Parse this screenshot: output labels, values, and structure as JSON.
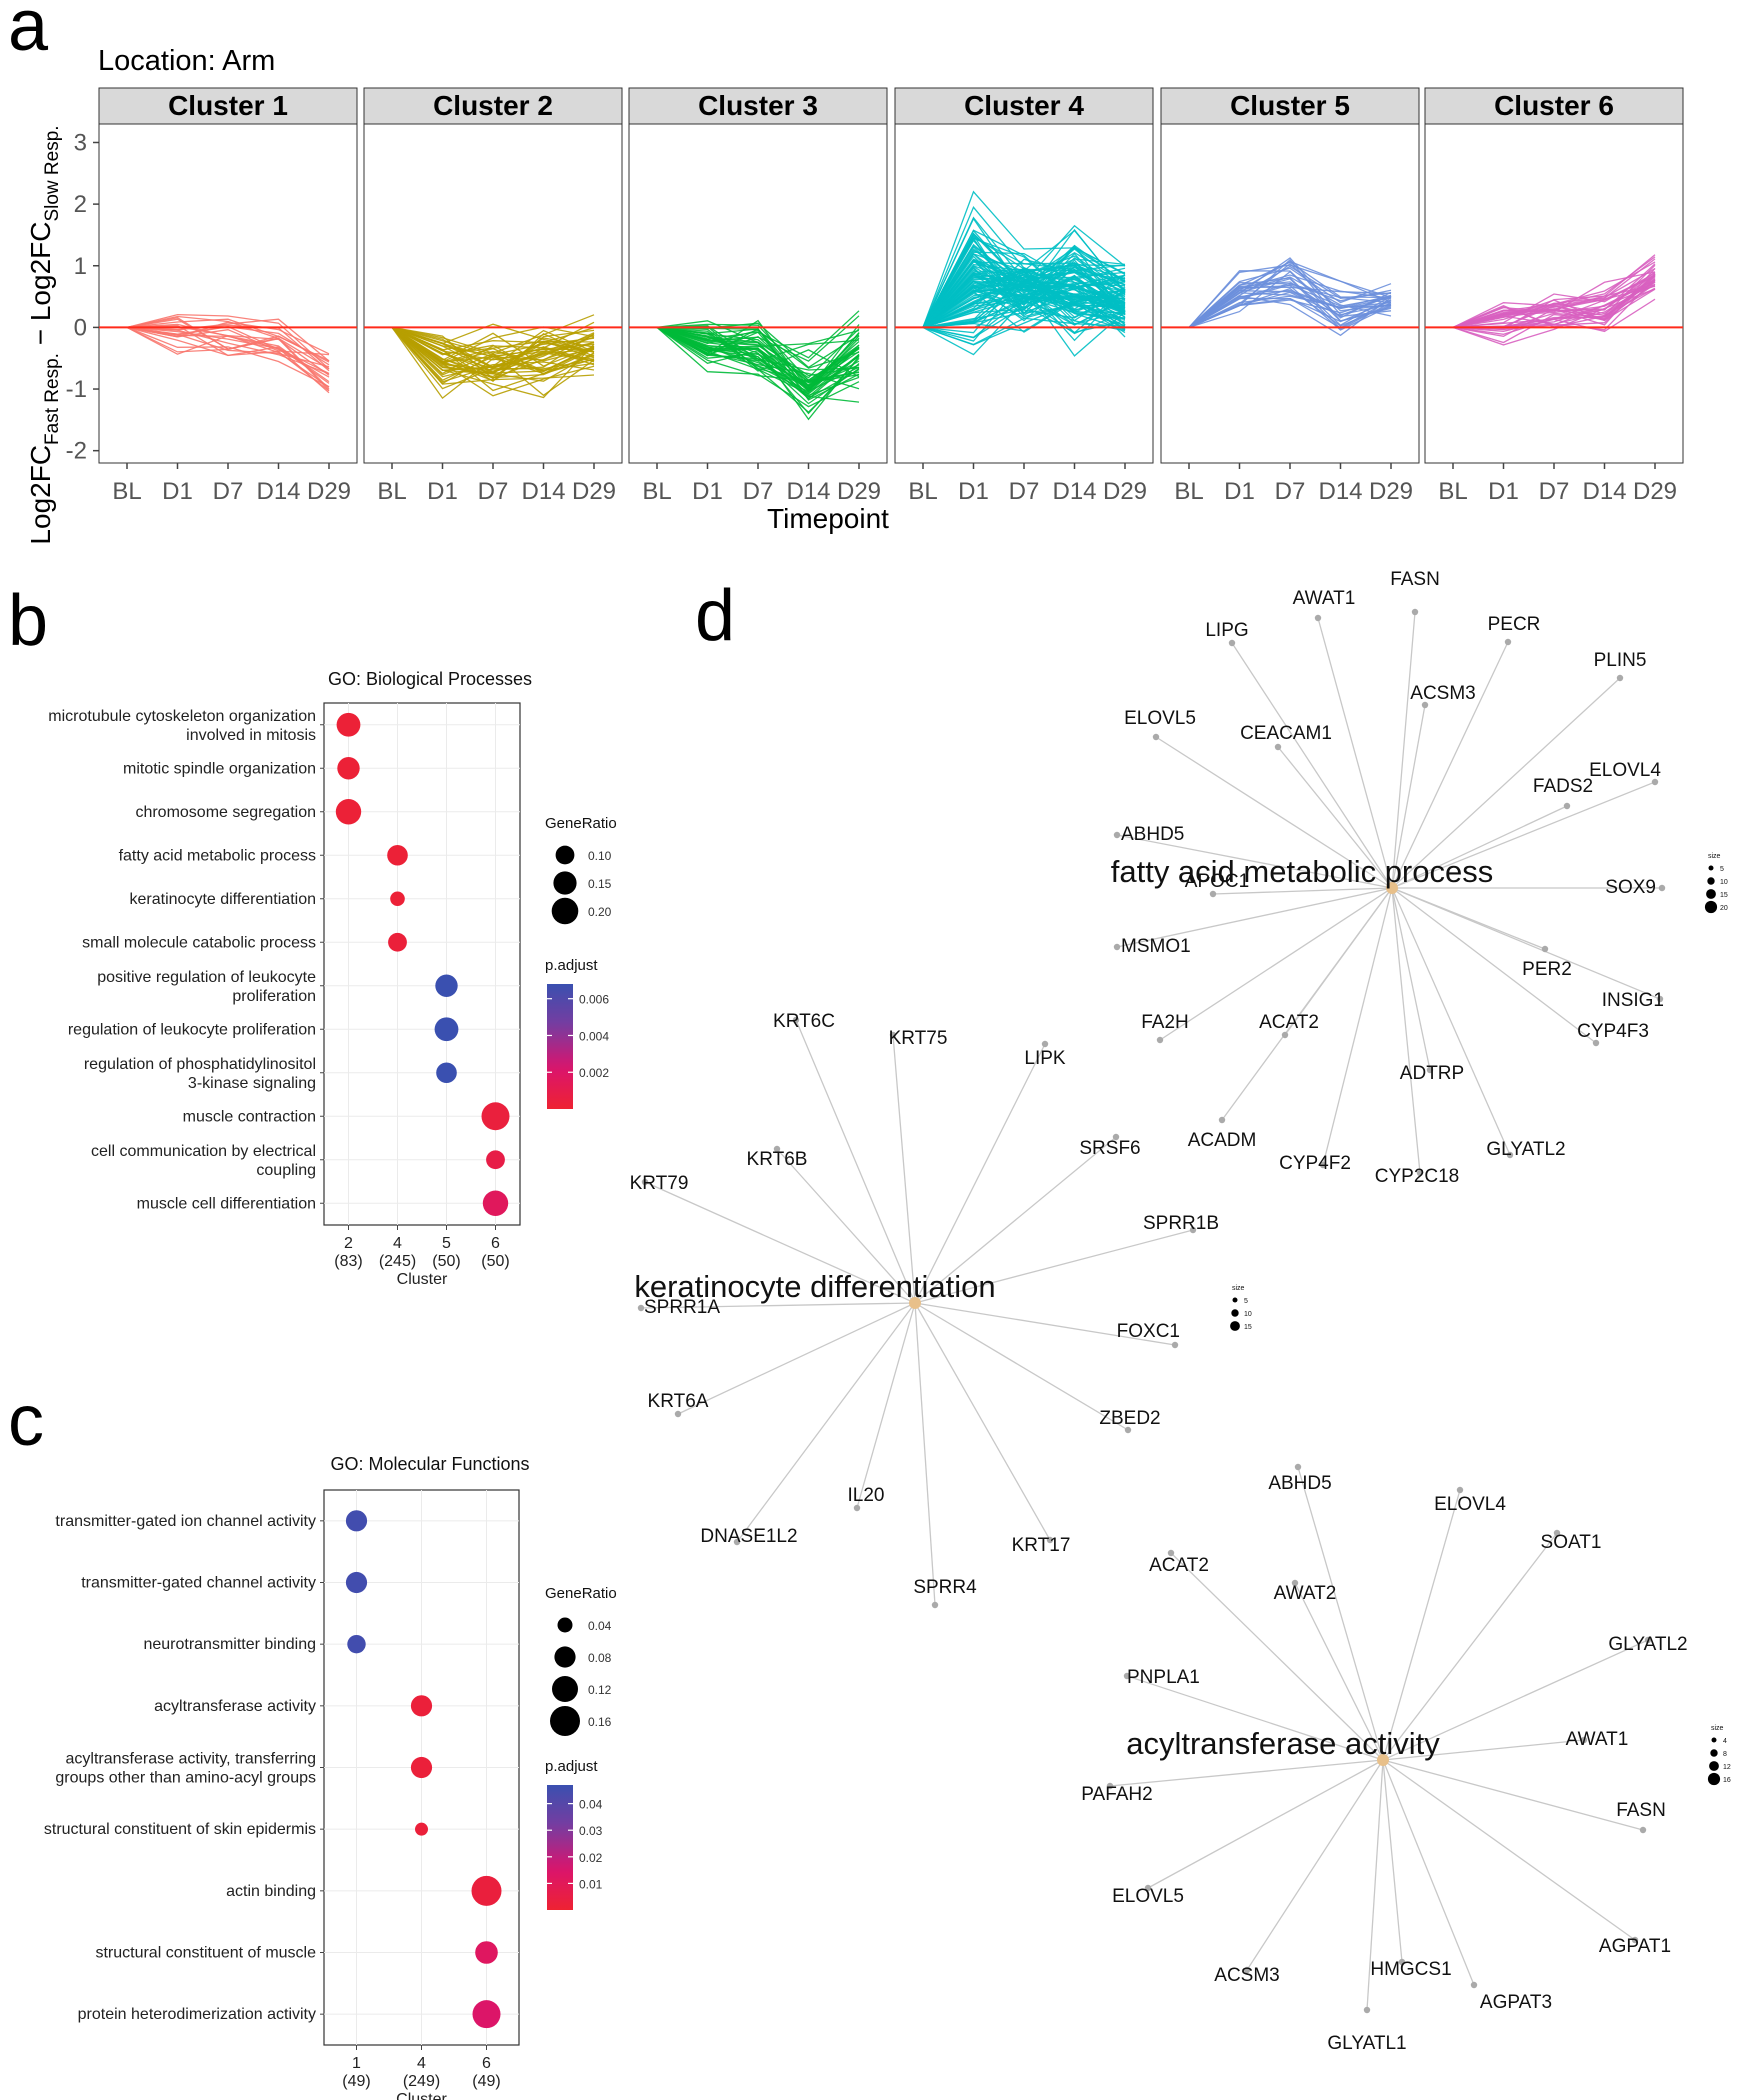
{
  "panel_labels": {
    "a": "a",
    "b": "b",
    "c": "c",
    "d": "d"
  },
  "panel_a": {
    "location": "Location: Arm",
    "y_axis_label": "Log2FC",
    "y_sub_fast": "Fast Resp.",
    "y_sub_slow": "Slow Resp.",
    "y_minus": " − Log2FC",
    "x_axis_label": "Timepoint",
    "yticks": [
      "-2",
      "-1",
      "0",
      "1",
      "2",
      "3"
    ],
    "timepoints": [
      "BL",
      "D1",
      "D7",
      "D14",
      "D29"
    ],
    "reference_line_color": "#ff2a1a"
  },
  "panel_b": {
    "title": "GO: Biological Processes",
    "x_title": "Cluster",
    "legend_size_title": "GeneRatio",
    "legend_color_title": "p.adjust"
  },
  "panel_c": {
    "title": "GO: Molecular Functions",
    "x_title": "Cluster",
    "legend_size_title": "GeneRatio",
    "legend_color_title": "p.adjust"
  },
  "panel_d": {
    "hub_color": "#e8c08a",
    "edge_color": "#c8c8c8",
    "size_legend_title": "size"
  },
  "chart_data": [
    {
      "type": "line",
      "id": "a",
      "title": "Location: Arm",
      "xlabel": "Timepoint",
      "ylabel": "Log2FC Fast Resp. − Log2FC Slow Resp.",
      "x": [
        "BL",
        "D1",
        "D7",
        "D14",
        "D29"
      ],
      "ylim": [
        -2.2,
        3.3
      ],
      "facets": [
        {
          "name": "Cluster 1",
          "color": "#f8766d",
          "n_lines": 22,
          "mean": [
            0,
            -0.1,
            -0.15,
            -0.2,
            -0.8
          ],
          "spread": [
            0,
            0.25,
            0.3,
            0.3,
            0.25
          ]
        },
        {
          "name": "Cluster 2",
          "color": "#b79f00",
          "n_lines": 45,
          "mean": [
            0,
            -0.6,
            -0.55,
            -0.45,
            -0.3
          ],
          "spread": [
            0,
            0.35,
            0.35,
            0.4,
            0.3
          ]
        },
        {
          "name": "Cluster 3",
          "color": "#00ba38",
          "n_lines": 45,
          "mean": [
            0,
            -0.3,
            -0.4,
            -0.9,
            -0.4
          ],
          "spread": [
            0,
            0.35,
            0.35,
            0.4,
            0.45
          ]
        },
        {
          "name": "Cluster 4",
          "color": "#00bfc4",
          "n_lines": 110,
          "mean": [
            0,
            0.8,
            0.6,
            0.6,
            0.4
          ],
          "spread": [
            0,
            0.8,
            0.5,
            0.6,
            0.45
          ]
        },
        {
          "name": "Cluster 5",
          "color": "#6c8fdb",
          "n_lines": 30,
          "mean": [
            0,
            0.55,
            0.75,
            0.3,
            0.45
          ],
          "spread": [
            0,
            0.3,
            0.35,
            0.35,
            0.2
          ]
        },
        {
          "name": "Cluster 6",
          "color": "#d860c0",
          "n_lines": 35,
          "mean": [
            0,
            0.15,
            0.25,
            0.3,
            0.85
          ],
          "spread": [
            0,
            0.25,
            0.25,
            0.25,
            0.25
          ]
        }
      ]
    },
    {
      "type": "scatter",
      "id": "b",
      "title": "GO: Biological Processes",
      "xlabel": "Cluster",
      "x_categories": [
        "2",
        "4",
        "5",
        "6"
      ],
      "x_counts": [
        "(83)",
        "(245)",
        "(50)",
        "(50)"
      ],
      "terms": [
        {
          "label": "microtubule cytoskeleton organization\ninvolved in mitosis",
          "cluster": "2",
          "gene_ratio": 0.16,
          "p_adjust": 0.0002,
          "highlight": false
        },
        {
          "label": "mitotic spindle organization",
          "cluster": "2",
          "gene_ratio": 0.14,
          "p_adjust": 0.0002,
          "highlight": false
        },
        {
          "label": "chromosome segregation",
          "cluster": "2",
          "gene_ratio": 0.18,
          "p_adjust": 0.0002,
          "highlight": false
        },
        {
          "label": "fatty acid metabolic process",
          "cluster": "4",
          "gene_ratio": 0.12,
          "p_adjust": 0.0002,
          "highlight": true
        },
        {
          "label": "keratinocyte differentiation",
          "cluster": "4",
          "gene_ratio": 0.06,
          "p_adjust": 0.0002,
          "highlight": true
        },
        {
          "label": "small molecule catabolic process",
          "cluster": "4",
          "gene_ratio": 0.1,
          "p_adjust": 0.0003,
          "highlight": false
        },
        {
          "label": "positive regulation of leukocyte\nproliferation",
          "cluster": "5",
          "gene_ratio": 0.14,
          "p_adjust": 0.0068,
          "highlight": false
        },
        {
          "label": "regulation of leukocyte proliferation",
          "cluster": "5",
          "gene_ratio": 0.16,
          "p_adjust": 0.0068,
          "highlight": false
        },
        {
          "label": "regulation of phosphatidylinositol\n3-kinase signaling",
          "cluster": "5",
          "gene_ratio": 0.12,
          "p_adjust": 0.0068,
          "highlight": false
        },
        {
          "label": "muscle contraction",
          "cluster": "6",
          "gene_ratio": 0.22,
          "p_adjust": 0.0004,
          "highlight": false
        },
        {
          "label": "cell communication by electrical\ncoupling",
          "cluster": "6",
          "gene_ratio": 0.1,
          "p_adjust": 0.0008,
          "highlight": false
        },
        {
          "label": "muscle cell differentiation",
          "cluster": "6",
          "gene_ratio": 0.18,
          "p_adjust": 0.0016,
          "highlight": false
        }
      ],
      "size_legend": [
        0.1,
        0.15,
        0.2
      ],
      "size_legend_labels": [
        "0.10",
        "0.15",
        "0.20"
      ],
      "color_legend_range": [
        0,
        0.0068
      ],
      "color_legend_ticks": [
        0.002,
        0.004,
        0.006
      ],
      "color_legend_labels": [
        "0.002",
        "0.004",
        "0.006"
      ],
      "highlight_color": "#ee2222"
    },
    {
      "type": "scatter",
      "id": "c",
      "title": "GO: Molecular Functions",
      "xlabel": "Cluster",
      "x_categories": [
        "1",
        "4",
        "6"
      ],
      "x_counts": [
        "(49)",
        "(249)",
        "(49)"
      ],
      "terms": [
        {
          "label": "transmitter-gated ion channel activity",
          "cluster": "1",
          "gene_ratio": 0.08,
          "p_adjust": 0.045,
          "highlight": false
        },
        {
          "label": "transmitter-gated channel activity",
          "cluster": "1",
          "gene_ratio": 0.08,
          "p_adjust": 0.045,
          "highlight": false
        },
        {
          "label": "neurotransmitter binding",
          "cluster": "1",
          "gene_ratio": 0.06,
          "p_adjust": 0.045,
          "highlight": false
        },
        {
          "label": "acyltransferase activity",
          "cluster": "4",
          "gene_ratio": 0.08,
          "p_adjust": 0.002,
          "highlight": true
        },
        {
          "label": "acyltransferase activity, transferring\ngroups other than amino-acyl groups",
          "cluster": "4",
          "gene_ratio": 0.08,
          "p_adjust": 0.002,
          "highlight": false
        },
        {
          "label": "structural constituent of skin epidermis",
          "cluster": "4",
          "gene_ratio": 0.03,
          "p_adjust": 0.002,
          "highlight": false
        },
        {
          "label": "actin binding",
          "cluster": "6",
          "gene_ratio": 0.16,
          "p_adjust": 0.003,
          "highlight": false
        },
        {
          "label": "structural constituent of muscle",
          "cluster": "6",
          "gene_ratio": 0.09,
          "p_adjust": 0.012,
          "highlight": false
        },
        {
          "label": "protein heterodimerization activity",
          "cluster": "6",
          "gene_ratio": 0.14,
          "p_adjust": 0.014,
          "highlight": false
        }
      ],
      "size_legend": [
        0.04,
        0.08,
        0.12,
        0.16
      ],
      "size_legend_labels": [
        "0.04",
        "0.08",
        "0.12",
        "0.16"
      ],
      "color_legend_range": [
        0,
        0.047
      ],
      "color_legend_ticks": [
        0.01,
        0.02,
        0.03,
        0.04
      ],
      "color_legend_labels": [
        "0.01",
        "0.02",
        "0.03",
        "0.04"
      ],
      "highlight_color": "#ee2222"
    },
    {
      "type": "network",
      "id": "d",
      "networks": [
        {
          "term": "fatty acid metabolic process",
          "genes": [
            "FASN",
            "AWAT1",
            "LIPG",
            "PECR",
            "ACSM3",
            "PLIN5",
            "CEACAM1",
            "ELOVL5",
            "ELOVL4",
            "FADS2",
            "ABHD5",
            "SOX9",
            "APOC1",
            "MSMO1",
            "PER2",
            "INSIG1",
            "FA2H",
            "ACAT2",
            "CYP4F3",
            "ADTRP",
            "ACADM",
            "CYP4F2",
            "CYP2C18",
            "GLYATL2"
          ],
          "size_legend": [
            "5",
            "10",
            "15",
            "20"
          ]
        },
        {
          "term": "keratinocyte differentiation",
          "genes": [
            "KRT6C",
            "KRT75",
            "LIPK",
            "KRT6B",
            "SRSF6",
            "KRT79",
            "SPRR1B",
            "SPRR1A",
            "FOXC1",
            "KRT6A",
            "ZBED2",
            "IL20",
            "DNASE1L2",
            "KRT17",
            "SPRR4"
          ],
          "size_legend": [
            "5",
            "10",
            "15"
          ]
        },
        {
          "term": "acyltransferase activity",
          "genes": [
            "ABHD5",
            "ELOVL4",
            "SOAT1",
            "ACAT2",
            "AWAT2",
            "GLYATL2",
            "PNPLA1",
            "AWAT1",
            "PAFAH2",
            "FASN",
            "ELOVL5",
            "AGPAT1",
            "ACSM3",
            "HMGCS1",
            "AGPAT3",
            "GLYATL1"
          ],
          "size_legend": [
            "4",
            "8",
            "12",
            "16"
          ]
        }
      ]
    }
  ]
}
